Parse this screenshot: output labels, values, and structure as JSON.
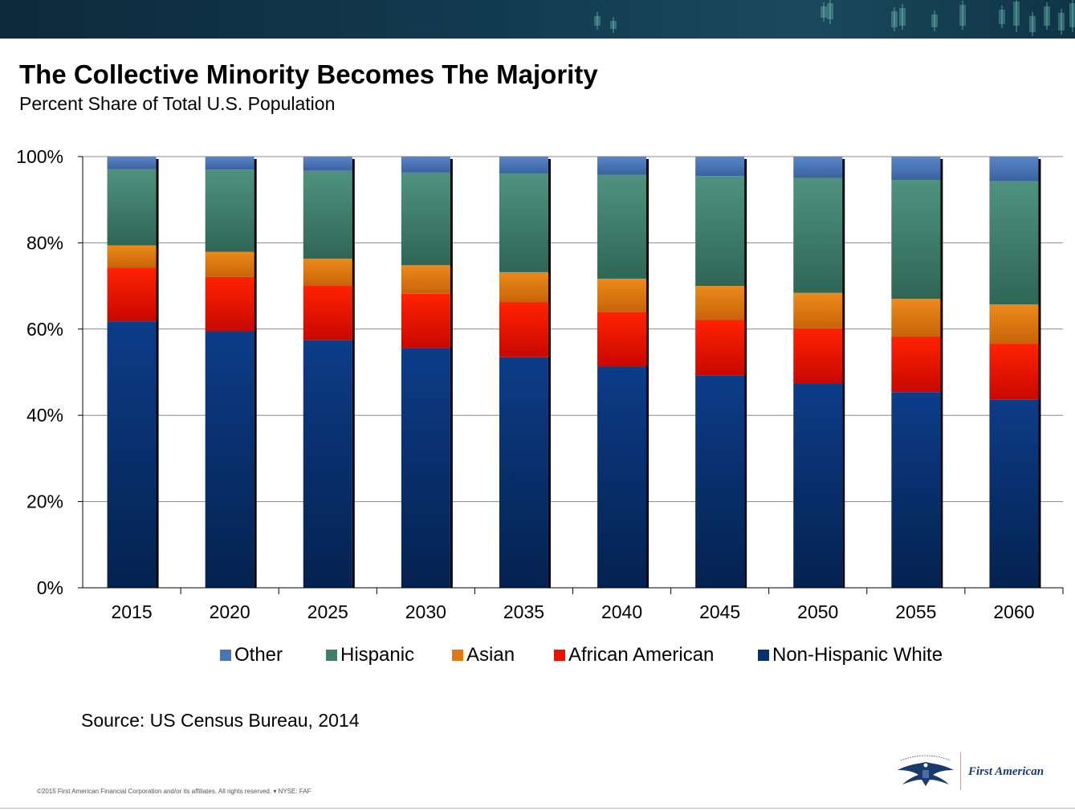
{
  "header": {
    "title": "The Collective Minority Becomes The Majority",
    "subtitle": "Percent Share of Total U.S. Population"
  },
  "chart_data": {
    "type": "bar",
    "stacked": true,
    "title": "The Collective Minority Becomes The Majority",
    "subtitle": "Percent Share of Total U.S. Population",
    "xlabel": "",
    "ylabel": "",
    "ylim": [
      0,
      100
    ],
    "yticks": [
      0,
      20,
      40,
      60,
      80,
      100
    ],
    "ytick_labels": [
      "0%",
      "20%",
      "40%",
      "60%",
      "80%",
      "100%"
    ],
    "grid": true,
    "legend_position": "bottom",
    "categories": [
      "2015",
      "2020",
      "2025",
      "2030",
      "2035",
      "2040",
      "2045",
      "2050",
      "2055",
      "2060"
    ],
    "series": [
      {
        "name": "Non-Hispanic White",
        "color": "#0a2f6e",
        "values": [
          61.8,
          59.5,
          57.5,
          55.5,
          53.5,
          51.3,
          49.3,
          47.3,
          45.4,
          43.6
        ]
      },
      {
        "name": "African American",
        "color": "#ee1100",
        "values": [
          12.4,
          12.6,
          12.6,
          12.7,
          12.7,
          12.7,
          12.8,
          12.9,
          12.9,
          13.0
        ]
      },
      {
        "name": "Asian",
        "color": "#e07a10",
        "values": [
          5.2,
          5.8,
          6.2,
          6.6,
          7.0,
          7.7,
          7.9,
          8.2,
          8.7,
          9.1
        ]
      },
      {
        "name": "Hispanic",
        "color": "#3f7f6a",
        "values": [
          17.7,
          19.1,
          20.4,
          21.5,
          22.9,
          24.1,
          25.5,
          26.6,
          27.6,
          28.6
        ]
      },
      {
        "name": "Other",
        "color": "#4a74b4",
        "values": [
          2.9,
          3.0,
          3.3,
          3.7,
          3.9,
          4.2,
          4.5,
          5.0,
          5.4,
          5.7
        ]
      }
    ],
    "legend_order": [
      "Other",
      "Hispanic",
      "Asian",
      "African American",
      "Non-Hispanic White"
    ]
  },
  "footer": {
    "source": "Source: US Census Bureau, 2014",
    "copyright": "©2015 First American Financial Corporation and/or its affiliates. All rights reserved. ▾ NYSE: FAF",
    "logo_text": "First American",
    "logo_icon": "eagle-icon"
  }
}
